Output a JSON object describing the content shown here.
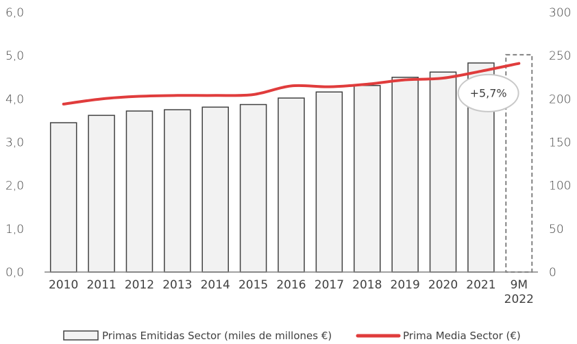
{
  "chart_data": {
    "type": "bar+line",
    "categories": [
      "2010",
      "2011",
      "2012",
      "2013",
      "2014",
      "2015",
      "2016",
      "2017",
      "2018",
      "2019",
      "2020",
      "2021",
      "9M\n2022"
    ],
    "category_lines": [
      [
        "2010"
      ],
      [
        "2011"
      ],
      [
        "2012"
      ],
      [
        "2013"
      ],
      [
        "2014"
      ],
      [
        "2015"
      ],
      [
        "2016"
      ],
      [
        "2017"
      ],
      [
        "2018"
      ],
      [
        "2019"
      ],
      [
        "2020"
      ],
      [
        "2021"
      ],
      [
        "9M",
        "2022"
      ]
    ],
    "series": [
      {
        "name": "Primas Emitidas Sector (miles de millones €)",
        "type": "bar",
        "axis": "left",
        "values": [
          3.45,
          3.62,
          3.72,
          3.75,
          3.81,
          3.87,
          4.02,
          4.16,
          4.31,
          4.5,
          4.62,
          4.83,
          null
        ],
        "forecast_outline_value": 5.02
      },
      {
        "name": "Prima Media Sector (€)",
        "type": "line",
        "axis": "right",
        "color": "#e03c3c",
        "values": [
          194,
          200,
          203,
          204,
          204,
          205,
          215,
          214,
          217,
          222,
          224,
          232,
          241
        ]
      }
    ],
    "left_axis": {
      "ticks": [
        "0,0",
        "1,0",
        "2,0",
        "3,0",
        "4,0",
        "5,0",
        "6,0"
      ],
      "ylim": [
        0,
        6
      ]
    },
    "right_axis": {
      "ticks": [
        "0",
        "50",
        "100",
        "150",
        "200",
        "250",
        "300"
      ],
      "ylim": [
        0,
        300
      ]
    },
    "annotation": {
      "text": "+5,7%"
    },
    "legend": {
      "placement": "bottom"
    },
    "grid": false
  }
}
